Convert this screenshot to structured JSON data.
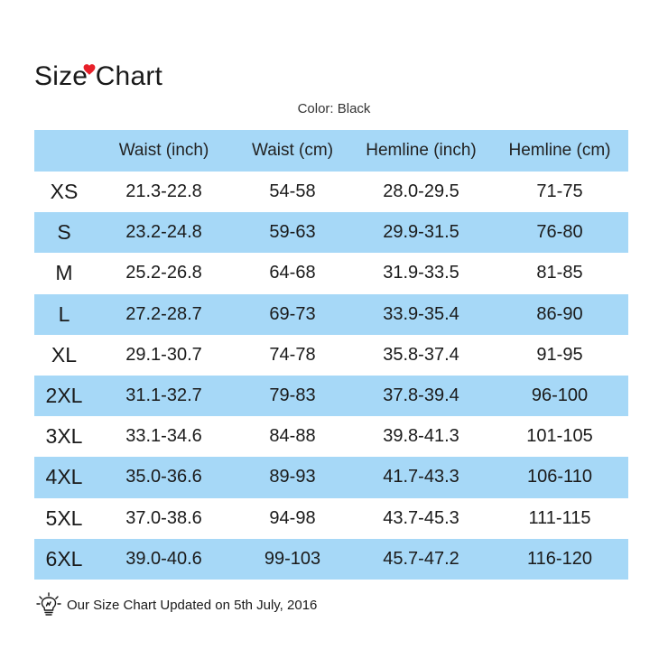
{
  "title": "Size Chart",
  "color_label": "Color: Black",
  "accent_colors": {
    "heart": "#e8202a",
    "row_shade": "#a6d8f7"
  },
  "table": {
    "headers": [
      "",
      "Waist (inch)",
      "Waist (cm)",
      "Hemline (inch)",
      "Hemline (cm)"
    ],
    "rows": [
      [
        "XS",
        "21.3-22.8",
        "54-58",
        "28.0-29.5",
        "71-75"
      ],
      [
        "S",
        "23.2-24.8",
        "59-63",
        "29.9-31.5",
        "76-80"
      ],
      [
        "M",
        "25.2-26.8",
        "64-68",
        "31.9-33.5",
        "81-85"
      ],
      [
        "L",
        "27.2-28.7",
        "69-73",
        "33.9-35.4",
        "86-90"
      ],
      [
        "XL",
        "29.1-30.7",
        "74-78",
        "35.8-37.4",
        "91-95"
      ],
      [
        "2XL",
        "31.1-32.7",
        "79-83",
        "37.8-39.4",
        "96-100"
      ],
      [
        "3XL",
        "33.1-34.6",
        "84-88",
        "39.8-41.3",
        "101-105"
      ],
      [
        "4XL",
        "35.0-36.6",
        "89-93",
        "41.7-43.3",
        "106-110"
      ],
      [
        "5XL",
        "37.0-38.6",
        "94-98",
        "43.7-45.3",
        "111-115"
      ],
      [
        "6XL",
        "39.0-40.6",
        "99-103",
        "45.7-47.2",
        "116-120"
      ]
    ]
  },
  "footer": {
    "icon": "lightbulb-icon",
    "text": "Our Size Chart Updated on 5th July, 2016"
  }
}
